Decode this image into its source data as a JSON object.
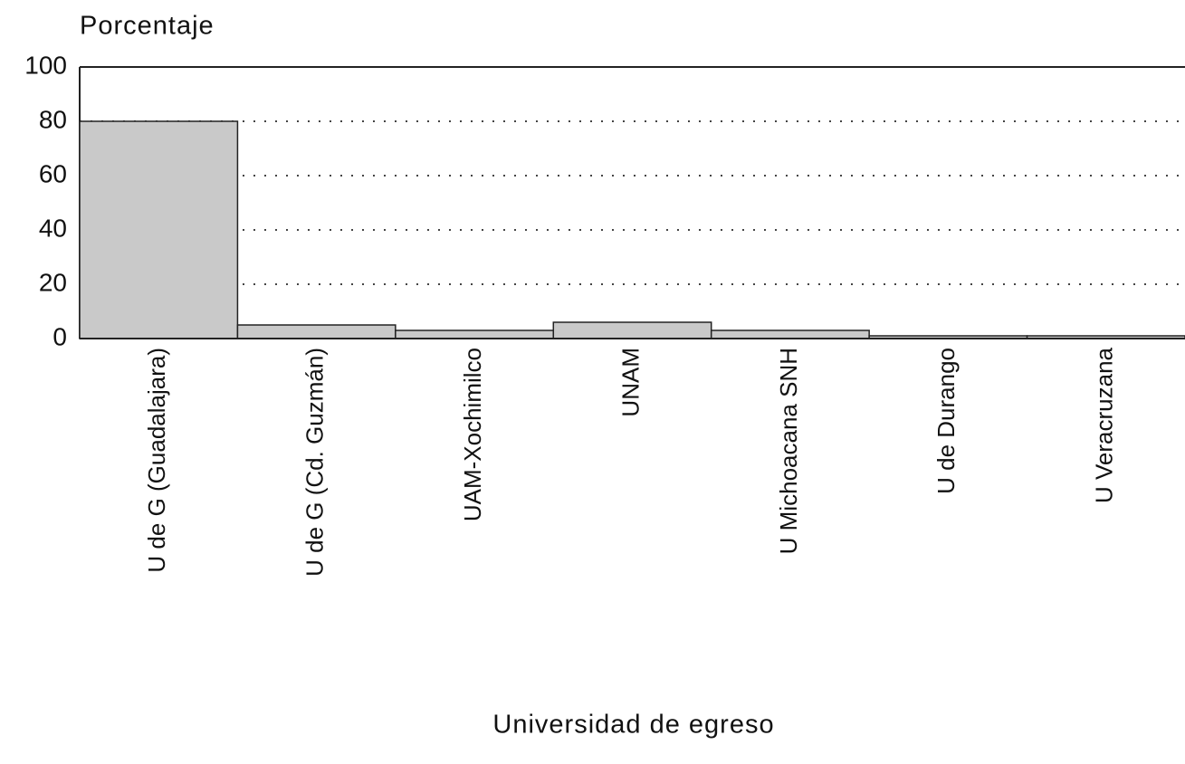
{
  "chart_data": {
    "type": "bar",
    "y_label": "Porcentaje",
    "x_label": "Universidad de egreso",
    "categories": [
      "U de G (Guadalajara)",
      "U de G (Cd. Guzmán)",
      "UAM-Xochimilco",
      "UNAM",
      "U Michoacana SNH",
      "U de Durango",
      "U Veracruzana"
    ],
    "values": [
      80,
      5,
      3,
      6,
      3,
      1,
      1
    ],
    "color": "#c9c9c9",
    "ylim": [
      0,
      100
    ],
    "yticks": [
      0,
      20,
      40,
      60,
      80,
      100
    ],
    "grid": true
  }
}
